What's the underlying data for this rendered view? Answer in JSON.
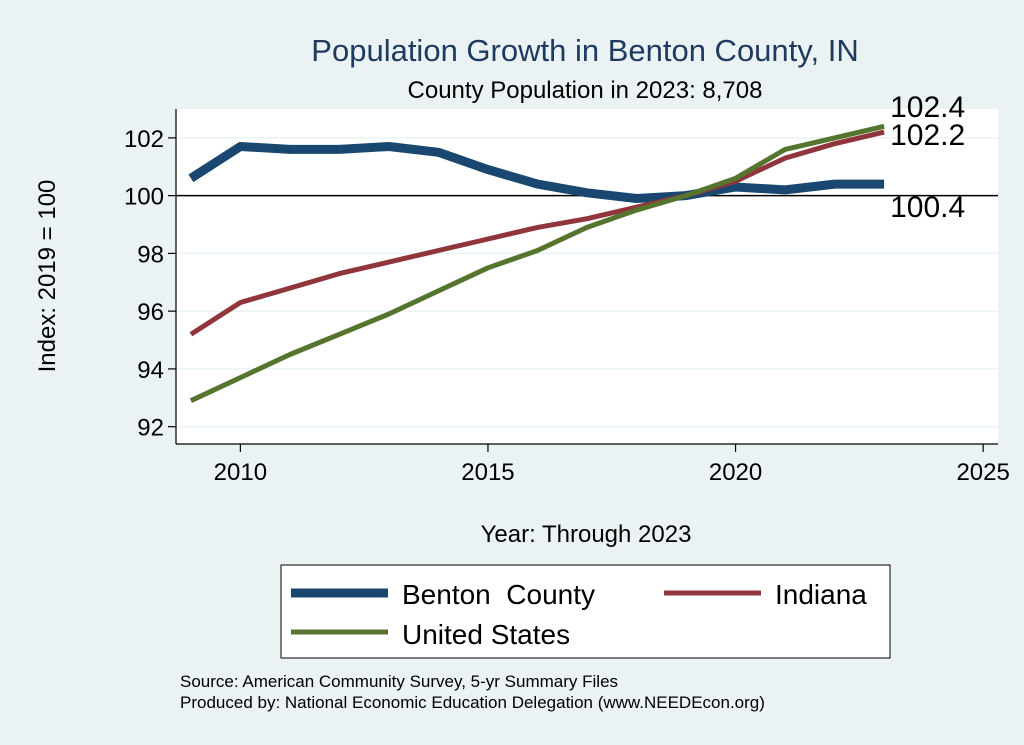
{
  "chart_data": {
    "type": "line",
    "title": "Population Growth in Benton County, IN",
    "subtitle": "County Population in 2023: 8,708",
    "xlabel": "Year: Through 2023",
    "ylabel": "Index: 2019 = 100",
    "xlim": [
      2008.7,
      2025.3
    ],
    "ylim": [
      91.4,
      103.0
    ],
    "xticks": [
      2010,
      2015,
      2020,
      2025
    ],
    "yticks": [
      92,
      94,
      96,
      98,
      100,
      102
    ],
    "reference_line": 100,
    "x": [
      2009,
      2010,
      2011,
      2012,
      2013,
      2014,
      2015,
      2016,
      2017,
      2018,
      2019,
      2020,
      2021,
      2022,
      2023
    ],
    "series": [
      {
        "name": "Benton  County",
        "color": "#1a476f",
        "values": [
          100.6,
          101.7,
          101.6,
          101.6,
          101.7,
          101.5,
          100.9,
          100.4,
          100.1,
          99.9,
          100.0,
          100.3,
          100.2,
          100.4,
          100.4
        ],
        "end_label": "100.4"
      },
      {
        "name": "Indiana",
        "color": "#90353b",
        "values": [
          95.2,
          96.3,
          96.8,
          97.3,
          97.7,
          98.1,
          98.5,
          98.9,
          99.2,
          99.6,
          100.0,
          100.5,
          101.3,
          101.8,
          102.2
        ],
        "end_label": "102.2"
      },
      {
        "name": "United States",
        "color": "#55752f",
        "values": [
          92.9,
          93.7,
          94.5,
          95.2,
          95.9,
          96.7,
          97.5,
          98.1,
          98.9,
          99.5,
          100.0,
          100.6,
          101.6,
          102.0,
          102.4
        ],
        "end_label": "102.4"
      }
    ],
    "legend": {
      "placement": "bottom",
      "columns": 2
    },
    "grid": true
  },
  "notes": {
    "source": "Source: American Community Survey, 5-yr Summary Files",
    "produced_by": "Produced by: National Economic Education Delegation (www.NEEDEcon.org)"
  },
  "colors": {
    "background": "#eaf2f3",
    "plot_background": "#ffffff",
    "title": "#1e3a5f",
    "grid": "#eaf2f3"
  }
}
